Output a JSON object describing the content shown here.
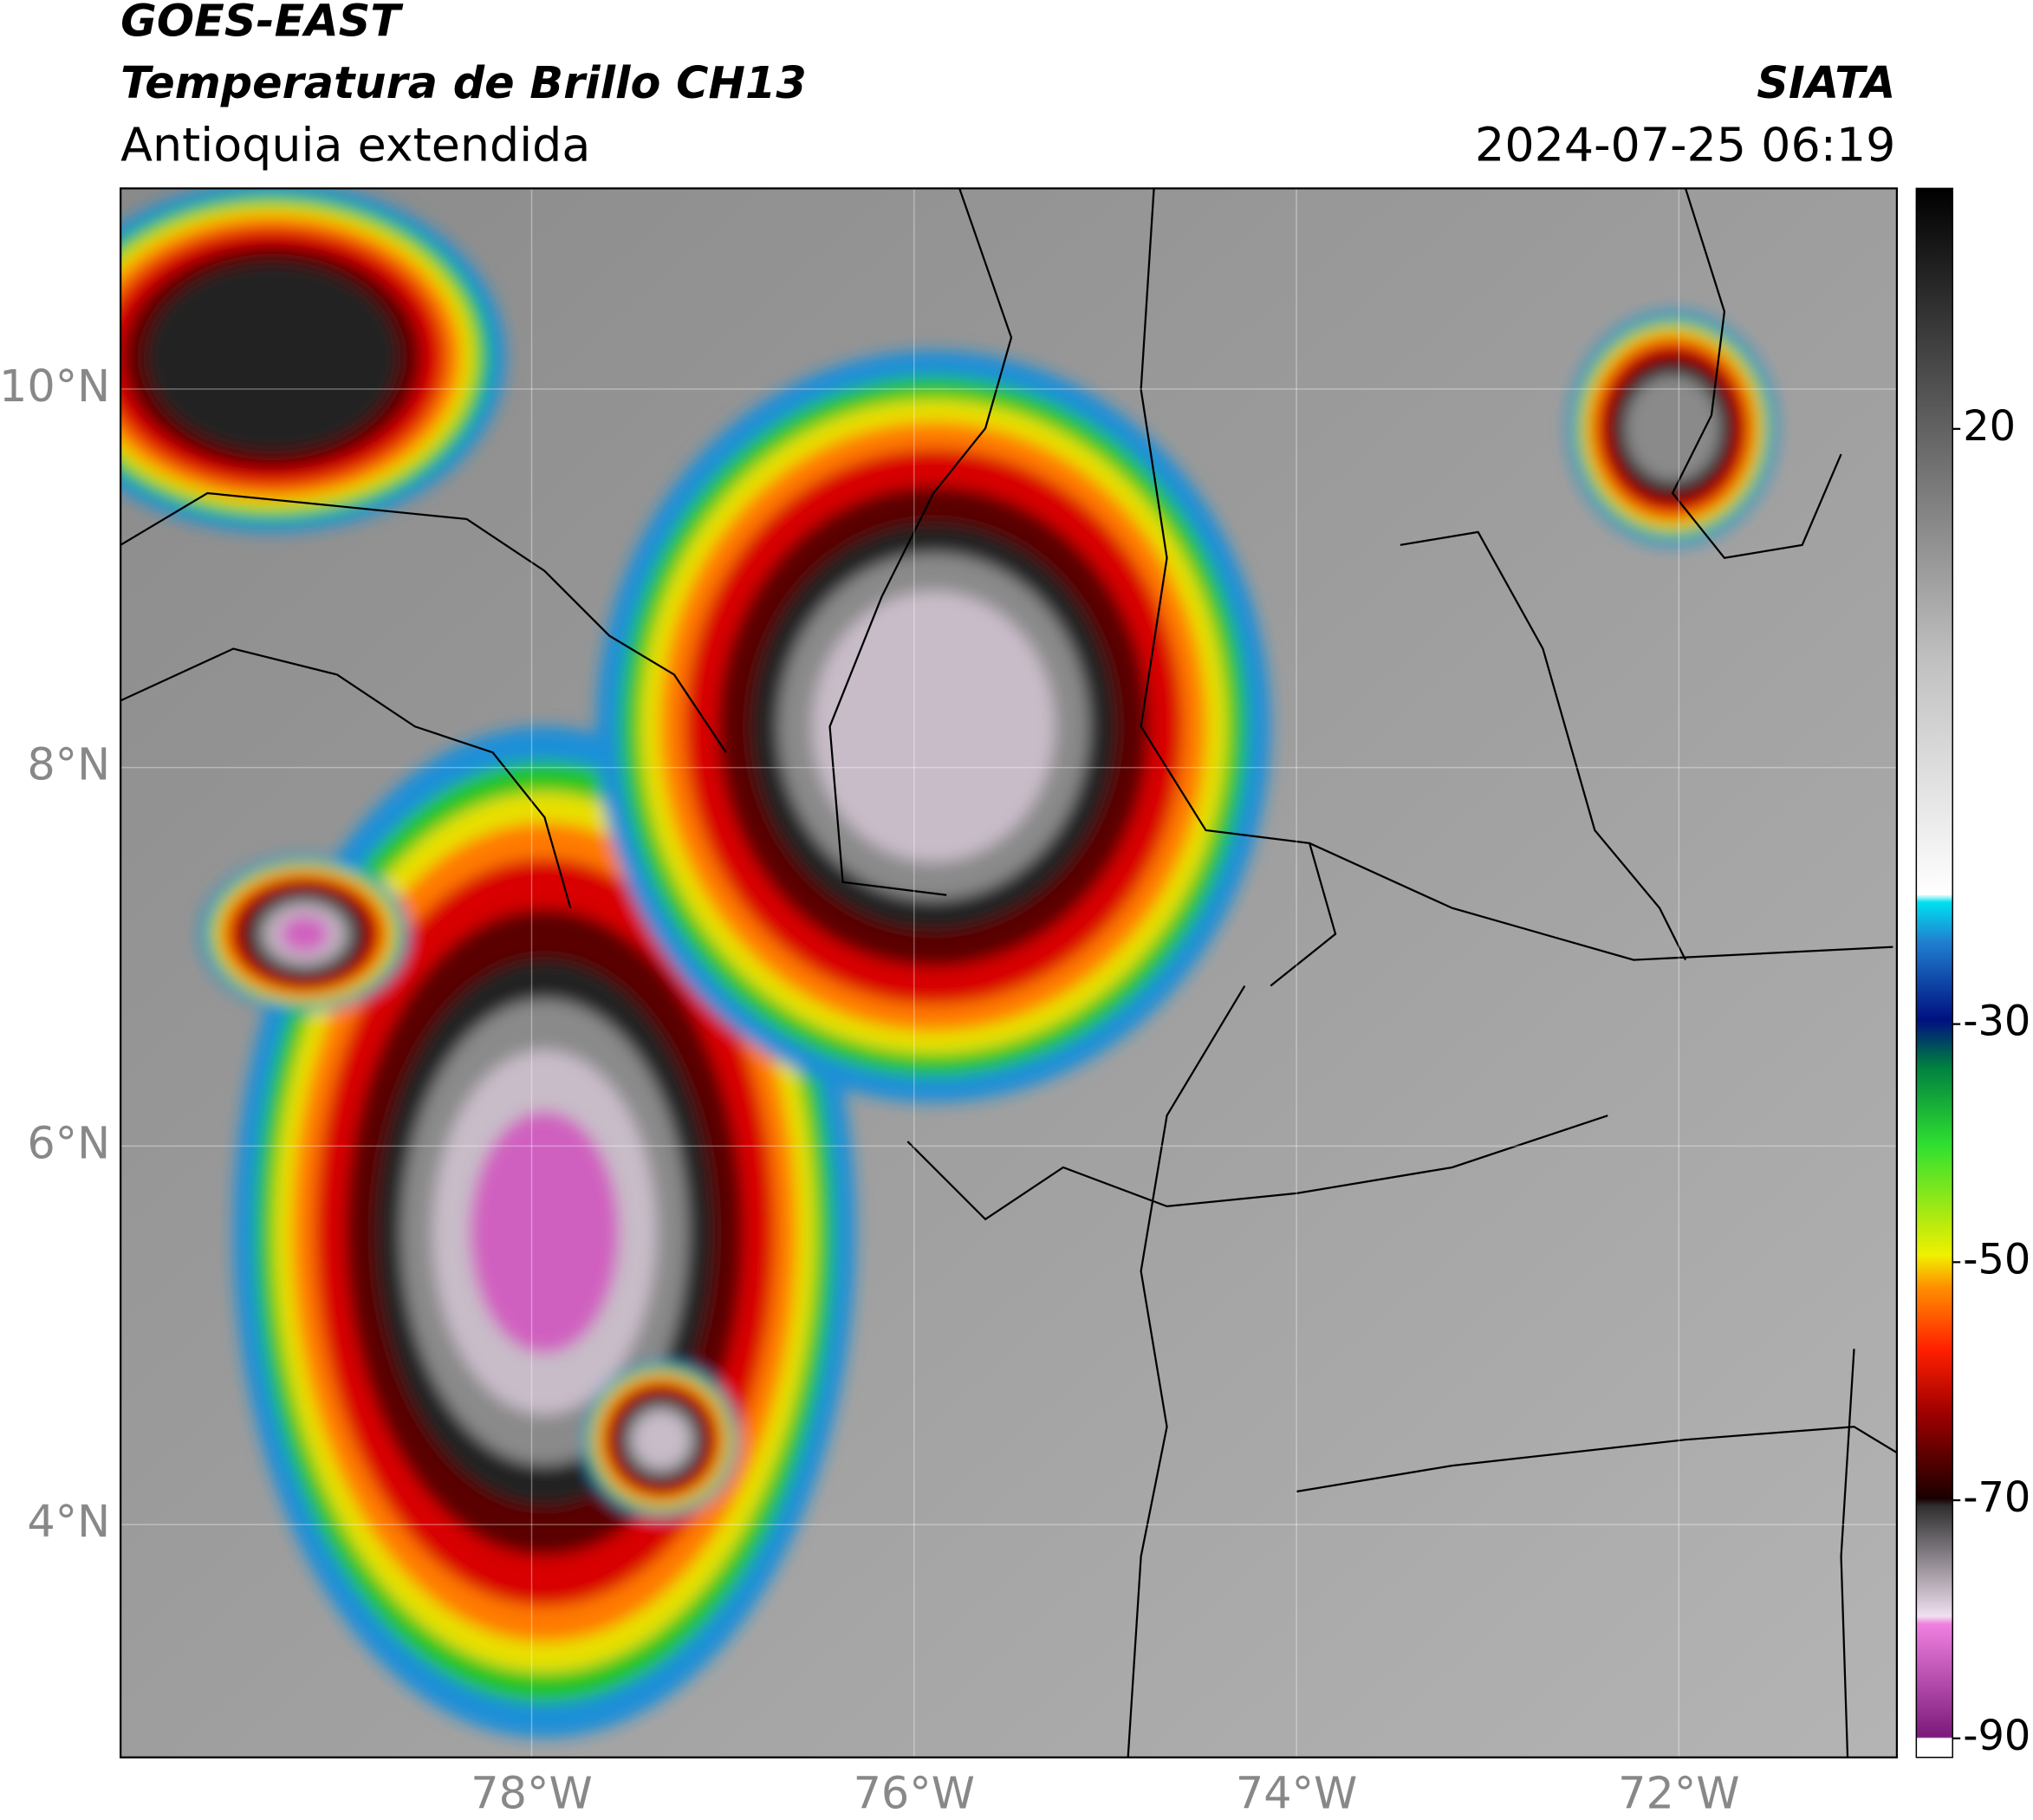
{
  "header": {
    "title": "GOES-EAST",
    "subtitle": "Temperatura de Brillo CH13",
    "region": "Antioquia extendida",
    "source": "SIATA",
    "datetime": "2024-07-25 06:19"
  },
  "map": {
    "xlim": [
      -80.15,
      -70.86
    ],
    "ylim": [
      2.77,
      11.06
    ],
    "xticks": [
      {
        "value": -78,
        "label": "78°W"
      },
      {
        "value": -76,
        "label": "76°W"
      },
      {
        "value": -74,
        "label": "74°W"
      },
      {
        "value": -72,
        "label": "72°W"
      }
    ],
    "yticks": [
      {
        "value": 4,
        "label": "4°N"
      },
      {
        "value": 6,
        "label": "6°N"
      },
      {
        "value": 8,
        "label": "8°N"
      },
      {
        "value": 10,
        "label": "10°N"
      }
    ],
    "grid": true
  },
  "colorbar": {
    "lim": [
      -91.6,
      40.2
    ],
    "ticks": [
      20,
      -30,
      -50,
      -70,
      -90
    ]
  }
}
